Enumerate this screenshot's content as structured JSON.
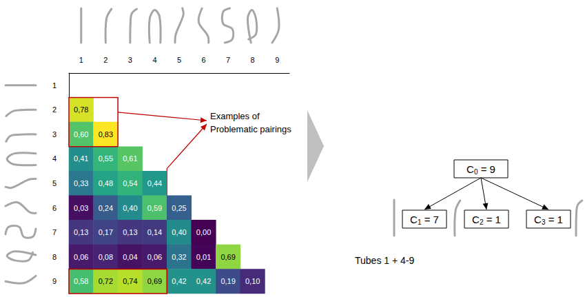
{
  "chart_data": {
    "type": "heatmap",
    "x": [
      "1",
      "2",
      "3",
      "4",
      "5",
      "6",
      "7",
      "8",
      "9"
    ],
    "y": [
      "1",
      "2",
      "3",
      "4",
      "5",
      "6",
      "7",
      "8",
      "9"
    ],
    "cells": [
      [],
      [
        0.78
      ],
      [
        0.6,
        0.83
      ],
      [
        0.41,
        0.55,
        0.61
      ],
      [
        0.33,
        0.48,
        0.54,
        0.44
      ],
      [
        0.03,
        0.24,
        0.4,
        0.59,
        0.25
      ],
      [
        0.13,
        0.17,
        0.13,
        0.14,
        0.4,
        0.0
      ],
      [
        0.06,
        0.08,
        0.04,
        0.06,
        0.32,
        0.01,
        0.69
      ],
      [
        0.58,
        0.72,
        0.74,
        0.69,
        0.42,
        0.42,
        0.19,
        0.1
      ]
    ],
    "value_labels": [
      [],
      [
        "0,78"
      ],
      [
        "0,60",
        "0,83"
      ],
      [
        "0,41",
        "0,55",
        "0,61"
      ],
      [
        "0,33",
        "0,48",
        "0,54",
        "0,44"
      ],
      [
        "0,03",
        "0,24",
        "0,40",
        "0,59",
        "0,25"
      ],
      [
        "0,13",
        "0,17",
        "0,13",
        "0,14",
        "0,40",
        "0,00"
      ],
      [
        "0,06",
        "0,08",
        "0,04",
        "0,06",
        "0,32",
        "0,01",
        "0,69"
      ],
      [
        "0,58",
        "0,72",
        "0,74",
        "0,69",
        "0,42",
        "0,42",
        "0,19",
        "0,10"
      ]
    ],
    "diagonal_label": "-",
    "data_labels": true
  },
  "annotation": {
    "lines": [
      "Examples of",
      "Problematic pairings"
    ],
    "color": "#c00000",
    "highlights": [
      {
        "x": [
          "1",
          "2"
        ],
        "y": [
          "2",
          "3"
        ]
      },
      {
        "x": [
          "1",
          "4"
        ],
        "y": [
          "9",
          "9"
        ]
      }
    ]
  },
  "tree": {
    "root": {
      "label": "C",
      "subscript": 0,
      "relation": "=",
      "value": 9
    },
    "children": [
      {
        "label": "C",
        "subscript": 1,
        "relation": "=",
        "value": 7
      },
      {
        "label": "C",
        "subscript": 2,
        "relation": "=",
        "value": 1
      },
      {
        "label": "C",
        "subscript": 3,
        "relation": "=",
        "value": 1
      }
    ],
    "caption": "Tubes 1 + 4-9"
  }
}
